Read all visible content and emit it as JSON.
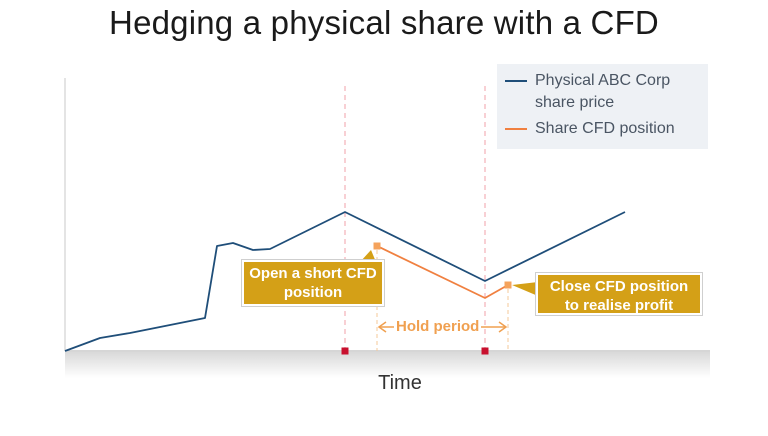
{
  "chart_data": {
    "type": "line",
    "title": "Hedging a physical share with a CFD",
    "xlabel": "Time",
    "ylabel": "",
    "legend_position": "top-right",
    "grid": false,
    "series": [
      {
        "name": "Physical ABC Corp share price",
        "color": "#1f4e79",
        "points": [
          [
            0,
            0
          ],
          [
            35,
            13
          ],
          [
            65,
            18
          ],
          [
            140,
            33
          ],
          [
            152,
            105
          ],
          [
            168,
            108
          ],
          [
            188,
            101
          ],
          [
            205,
            102
          ],
          [
            280,
            139
          ],
          [
            420,
            70
          ],
          [
            560,
            139
          ]
        ]
      },
      {
        "name": "Share CFD position",
        "color": "#f08040",
        "points": [
          [
            312,
            105
          ],
          [
            420,
            53
          ],
          [
            443,
            66
          ]
        ]
      }
    ],
    "event_lines": [
      {
        "x": 280,
        "color": "#f2a0a8"
      },
      {
        "x": 420,
        "color": "#f2a0a8"
      }
    ],
    "hold_period": {
      "start": 312,
      "end": 443,
      "label": "Hold period"
    },
    "annotations": [
      {
        "text": "Open a short CFD position"
      },
      {
        "text": "Close CFD position to realise profit"
      }
    ]
  }
}
